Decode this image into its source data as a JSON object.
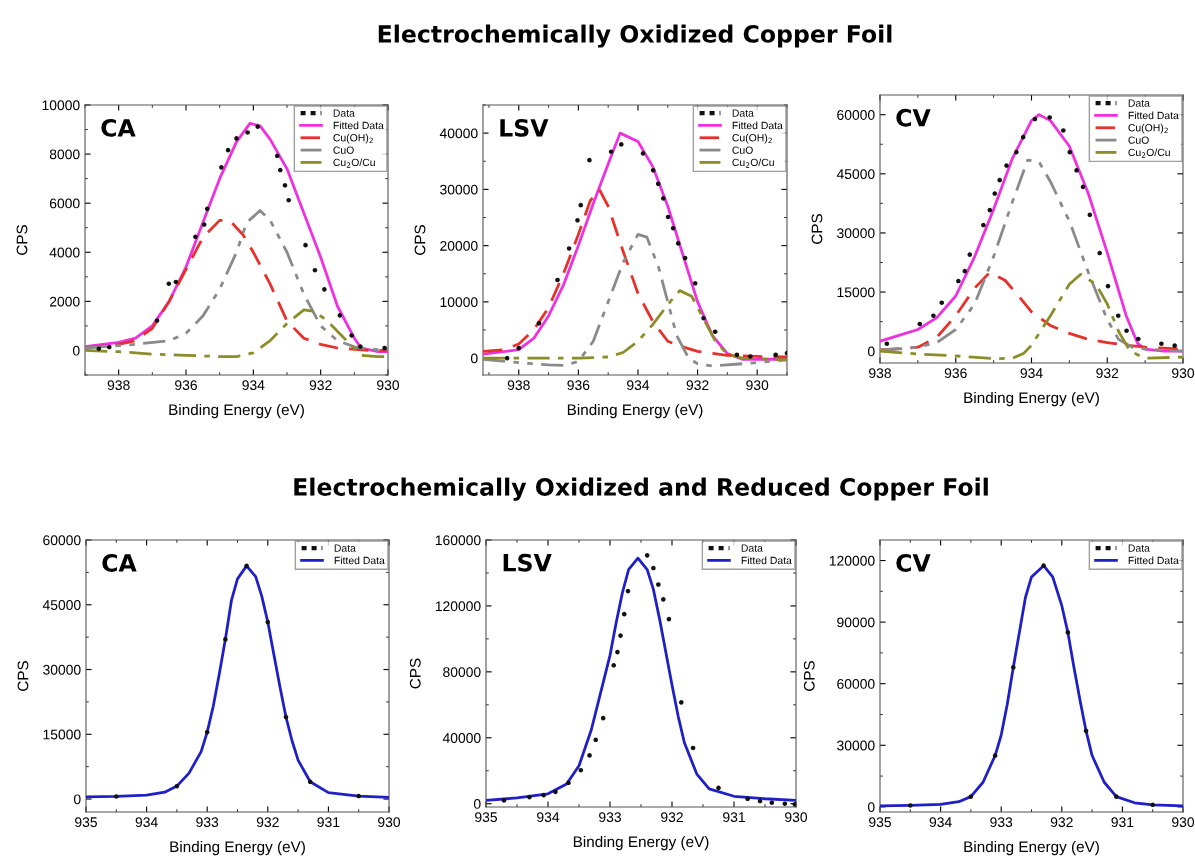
{
  "chart_data": [
    {
      "type": "line",
      "annotations": [
        "CA"
      ],
      "xlabel": "Binding Energy (eV)",
      "ylabel": "CPS",
      "xlim": [
        939,
        930
      ],
      "xticks": [
        938,
        936,
        934,
        932,
        930
      ],
      "ylim": [
        -1000,
        10000
      ],
      "yticks": [
        0,
        2000,
        4000,
        6000,
        8000,
        10000
      ],
      "legend": "top right",
      "grid": false,
      "series": [
        {
          "name": "Data",
          "type": "scatter",
          "marker": "circle",
          "color": "#111111",
          "x": [
            938.59,
            938.28,
            936.86,
            936.51,
            936.3,
            935.72,
            935.46,
            935.37,
            934.95,
            934.75,
            934.5,
            934.17,
            933.87,
            933.29,
            933.2,
            933.06,
            932.95,
            932.45,
            932.17,
            931.89,
            931.43,
            931.08,
            930.82,
            930.1
          ],
          "values": [
            70,
            140,
            1220,
            2720,
            2790,
            4630,
            5130,
            5770,
            7460,
            8160,
            8640,
            8880,
            9120,
            7930,
            7350,
            6730,
            6120,
            4290,
            3270,
            2490,
            1430,
            610,
            160,
            100
          ]
        },
        {
          "name": "Fitted Data",
          "color": "#ee30e0",
          "line_style": "solid",
          "x": [
            939,
            938,
            937.5,
            937,
            936.5,
            936,
            935.5,
            935,
            934.5,
            934.1,
            933.8,
            933.5,
            933,
            932.5,
            932,
            931.5,
            931,
            930.8,
            930.3,
            930
          ],
          "values": [
            150,
            330,
            500,
            1000,
            2000,
            3400,
            5200,
            7000,
            8500,
            9250,
            9150,
            8600,
            7400,
            5600,
            3800,
            1800,
            500,
            100,
            -50,
            -50
          ]
        },
        {
          "name": "Cu(OH)$_{2}$",
          "color": "#e8302a",
          "line_style": "dashed",
          "x": [
            939,
            938,
            937.5,
            937,
            936.5,
            936,
            935.5,
            935,
            934.7,
            934.3,
            934,
            933.5,
            933,
            932.5,
            932,
            931.5,
            930.5,
            930
          ],
          "values": [
            100,
            250,
            400,
            900,
            2000,
            3300,
            4600,
            5300,
            5300,
            4700,
            4000,
            2700,
            1200,
            500,
            250,
            100,
            0,
            0
          ]
        },
        {
          "name": "CuO",
          "color": "#8a8a8a",
          "line_style": "dashdotdot",
          "x": [
            939,
            937.5,
            936.5,
            936,
            935.5,
            935,
            934.5,
            934.2,
            933.8,
            933.5,
            933,
            932.5,
            932,
            931.5,
            931,
            930.5,
            930
          ],
          "values": [
            100,
            250,
            400,
            700,
            1400,
            2500,
            4000,
            5200,
            5700,
            5300,
            4000,
            2300,
            1000,
            400,
            150,
            50,
            0
          ]
        },
        {
          "name": "Cu$_{2}$O/Cu",
          "color": "#8c8c28",
          "line_style": "dashdot",
          "x": [
            939,
            938,
            937,
            936,
            935,
            934.5,
            934,
            933.5,
            933,
            932.5,
            932.2,
            931.8,
            931.3,
            930.8,
            930.3,
            930
          ],
          "values": [
            0,
            -50,
            -150,
            -200,
            -250,
            -250,
            -100,
            400,
            1100,
            1650,
            1600,
            1200,
            500,
            -200,
            -250,
            -250
          ]
        }
      ]
    },
    {
      "type": "line",
      "title": "Electrochemically Oxidized Copper Foil",
      "annotations": [
        "LSV"
      ],
      "xlabel": "Binding Energy (eV)",
      "ylabel": "CPS",
      "xlim": [
        939.2,
        929
      ],
      "xticks": [
        938,
        936,
        934,
        932,
        930
      ],
      "ylim": [
        -3000,
        45000
      ],
      "yticks": [
        0,
        10000,
        20000,
        30000,
        40000
      ],
      "legend": "top right",
      "grid": false,
      "series": [
        {
          "name": "Data",
          "type": "scatter",
          "marker": "circle",
          "color": "#111111",
          "x": [
            938.39,
            938,
            937.32,
            936.7,
            936.31,
            936.03,
            935.92,
            935.63,
            934.9,
            934.56,
            933.83,
            933.49,
            933.32,
            933.15,
            932.99,
            932.82,
            932.65,
            932.42,
            932.08,
            931.8,
            931.41,
            930.68,
            930.23,
            929.38,
            929.0
          ],
          "values": [
            0,
            1800,
            6200,
            13900,
            19500,
            24500,
            27200,
            35200,
            36700,
            38000,
            36400,
            33400,
            31000,
            28400,
            25100,
            23100,
            20400,
            17800,
            13300,
            7100,
            4700,
            600,
            300,
            600,
            900
          ]
        },
        {
          "name": "Fitted Data",
          "color": "#ee30e0",
          "line_style": "solid",
          "x": [
            939.2,
            938,
            937.5,
            937,
            936.5,
            936,
            935.5,
            935,
            934.6,
            934,
            933.5,
            933,
            932.5,
            932,
            931.5,
            931,
            930.5,
            929
          ],
          "values": [
            700,
            1500,
            3500,
            7500,
            13000,
            20000,
            27500,
            34500,
            40000,
            38500,
            34000,
            27000,
            18500,
            10000,
            4000,
            800,
            -200,
            -200
          ]
        },
        {
          "name": "Cu(OH)$_{2}$",
          "color": "#e8302a",
          "line_style": "dashed",
          "x": [
            939.2,
            938.5,
            938,
            937.5,
            937,
            936.5,
            936,
            935.6,
            935.3,
            935,
            934.5,
            934,
            933.5,
            933,
            932.5,
            932,
            931,
            930,
            929
          ],
          "values": [
            1200,
            1500,
            2500,
            5000,
            9000,
            15000,
            22000,
            28000,
            30000,
            27000,
            19000,
            11500,
            6500,
            3000,
            2000,
            1200,
            500,
            300,
            200
          ]
        },
        {
          "name": "CuO",
          "color": "#8a8a8a",
          "line_style": "dashdotdot",
          "x": [
            939.2,
            938,
            937,
            936.5,
            936,
            935.5,
            935,
            934.5,
            934,
            933.7,
            933.3,
            933,
            932.7,
            932.3,
            932,
            931.5,
            930.5,
            929
          ],
          "values": [
            -200,
            -800,
            -1200,
            -1300,
            -600,
            3000,
            10000,
            17000,
            22000,
            21500,
            16000,
            10000,
            4000,
            0,
            -1000,
            -1400,
            -1000,
            -300
          ]
        },
        {
          "name": "Cu$_{2}$O/Cu",
          "color": "#8c8c28",
          "line_style": "dashdot",
          "x": [
            939.2,
            936,
            935,
            934.5,
            934,
            933.5,
            933,
            932.6,
            932.2,
            931.8,
            931.4,
            931,
            930.5,
            929
          ],
          "values": [
            0,
            0,
            200,
            1000,
            3000,
            6000,
            9500,
            12000,
            11000,
            7000,
            3000,
            700,
            0,
            -300
          ]
        }
      ]
    },
    {
      "type": "line",
      "annotations": [
        "CV"
      ],
      "xlabel": "Binding Energy (eV)",
      "ylabel": "CPS",
      "xlim": [
        938,
        930
      ],
      "xticks": [
        938,
        936,
        934,
        932,
        930
      ],
      "ylim": [
        -3000,
        65000
      ],
      "yticks": [
        0,
        15000,
        30000,
        45000,
        60000
      ],
      "legend": "top right",
      "grid": false,
      "series": [
        {
          "name": "Data",
          "type": "scatter",
          "marker": "circle",
          "color": "#111111",
          "x": [
            937.82,
            936.95,
            936.59,
            936.37,
            935.93,
            935.76,
            935.63,
            935.27,
            935.1,
            934.97,
            934.84,
            934.66,
            934.4,
            934.22,
            933.91,
            933.52,
            933.16,
            932.99,
            932.81,
            932.64,
            932.46,
            932.2,
            931.98,
            931.71,
            931.49,
            931.18,
            930.57,
            930.22
          ],
          "values": [
            1900,
            6900,
            9000,
            12300,
            17800,
            20300,
            24500,
            32000,
            35800,
            40000,
            43400,
            47100,
            50500,
            54300,
            58900,
            59300,
            56000,
            50500,
            45900,
            41700,
            34600,
            24900,
            16500,
            9000,
            5200,
            3100,
            1900,
            1400
          ]
        },
        {
          "name": "Fitted Data",
          "color": "#ee30e0",
          "line_style": "solid",
          "x": [
            938,
            937.5,
            937,
            936.5,
            936,
            935.5,
            935,
            934.5,
            934,
            933.8,
            933.5,
            933,
            932.5,
            932,
            931.5,
            931.2,
            931,
            930.5,
            930
          ],
          "values": [
            2500,
            4000,
            5500,
            8500,
            14000,
            24000,
            36000,
            49000,
            58500,
            60000,
            58500,
            52000,
            40000,
            25000,
            9000,
            2000,
            500,
            0,
            0
          ]
        },
        {
          "name": "Cu(OH)$_{2}$",
          "color": "#e8302a",
          "line_style": "dashed",
          "x": [
            938,
            937,
            936.5,
            936,
            935.5,
            935.1,
            934.7,
            934.3,
            934,
            933.5,
            933,
            932.5,
            932,
            931.5,
            931,
            930
          ],
          "values": [
            300,
            1000,
            3500,
            9000,
            16000,
            20000,
            18000,
            13500,
            10000,
            6500,
            4500,
            3000,
            2200,
            1500,
            1000,
            500
          ]
        },
        {
          "name": "CuO",
          "color": "#8a8a8a",
          "line_style": "dashdotdot",
          "x": [
            938,
            937.5,
            937,
            936.5,
            936,
            935.5,
            935,
            934.5,
            934.1,
            933.8,
            933.5,
            933,
            932.5,
            932,
            931.7,
            931.3,
            930.5,
            930
          ],
          "values": [
            300,
            600,
            1000,
            2200,
            5500,
            12000,
            24000,
            38000,
            48500,
            48000,
            43000,
            33000,
            20000,
            8000,
            3000,
            800,
            200,
            0
          ]
        },
        {
          "name": "Cu$_{2}$O/Cu",
          "color": "#8c8c28",
          "line_style": "dashdot",
          "x": [
            938,
            937,
            936,
            935,
            934.5,
            934.2,
            934,
            933.5,
            933,
            932.7,
            932.3,
            932,
            931.7,
            931.4,
            931,
            930
          ],
          "values": [
            0,
            -700,
            -1200,
            -1900,
            -1800,
            -500,
            1500,
            9000,
            17000,
            19500,
            17000,
            12000,
            5000,
            0,
            -1800,
            -1500
          ]
        }
      ]
    },
    {
      "type": "line",
      "annotations": [
        "CA"
      ],
      "xlabel": "Binding Energy (eV)",
      "ylabel": "CPS",
      "xlim": [
        935,
        930
      ],
      "xticks": [
        935,
        934,
        933,
        932,
        931,
        930
      ],
      "ylim": [
        -3000,
        60000
      ],
      "yticks": [
        0,
        15000,
        30000,
        45000,
        60000
      ],
      "legend": "top right",
      "grid": false,
      "series": [
        {
          "name": "Data",
          "type": "scatter",
          "marker": "circle",
          "color": "#111111",
          "x": [
            934.5,
            933.5,
            933,
            932.7,
            932.35,
            932,
            931.7,
            931.3,
            930.5
          ],
          "values": [
            600,
            3000,
            15500,
            37000,
            54000,
            41000,
            19000,
            4000,
            700
          ]
        },
        {
          "name": "Fitted Data",
          "color": "#1f1fc8",
          "line_style": "solid",
          "x": [
            935,
            934.5,
            934,
            933.7,
            933.5,
            933.3,
            933.1,
            933,
            932.9,
            932.8,
            932.7,
            932.6,
            932.5,
            932.35,
            932.2,
            932.1,
            932,
            931.9,
            931.8,
            931.7,
            931.6,
            931.5,
            931.3,
            931,
            930.5,
            930
          ],
          "values": [
            500,
            600,
            900,
            1600,
            3000,
            6000,
            11000,
            15500,
            21500,
            29000,
            37000,
            46000,
            51000,
            54000,
            51500,
            47000,
            41000,
            33500,
            26000,
            19000,
            13500,
            9000,
            4000,
            1500,
            700,
            400
          ]
        }
      ]
    },
    {
      "type": "line",
      "title": "Electrochemically Oxidized and Reduced Copper Foil",
      "annotations": [
        "LSV"
      ],
      "xlabel": "Binding Energy (eV)",
      "ylabel": "CPS",
      "xlim": [
        935,
        930
      ],
      "xticks": [
        935,
        934,
        933,
        932,
        931,
        930
      ],
      "ylim": [
        -2000,
        160000
      ],
      "yticks": [
        0,
        40000,
        80000,
        120000,
        160000
      ],
      "legend": "top right",
      "grid": false,
      "series": [
        {
          "name": "Data",
          "type": "scatter",
          "marker": "circle",
          "color": "#111111",
          "x": [
            934.71,
            934.3,
            934.07,
            933.88,
            933.67,
            933.47,
            933.33,
            933.23,
            933.11,
            932.94,
            932.88,
            932.83,
            932.77,
            932.71,
            932.4,
            932.3,
            932.22,
            932.14,
            932.05,
            931.85,
            931.66,
            931.25,
            930.78,
            930.58,
            930.39,
            930.18,
            930.02
          ],
          "values": [
            2000,
            4000,
            5200,
            7200,
            12700,
            20300,
            29300,
            38800,
            51900,
            84000,
            92000,
            102000,
            115000,
            129000,
            150700,
            143000,
            133000,
            124000,
            112000,
            61500,
            33800,
            9600,
            3000,
            1600,
            600,
            0,
            -400
          ]
        },
        {
          "name": "Fitted Data",
          "color": "#1f1fc8",
          "line_style": "solid",
          "x": [
            935,
            934.5,
            934,
            933.7,
            933.5,
            933.3,
            933.1,
            933,
            932.9,
            932.8,
            932.7,
            932.55,
            932.4,
            932.3,
            932.2,
            932.1,
            932,
            931.9,
            931.8,
            931.6,
            931.4,
            931,
            930.5,
            930
          ],
          "values": [
            2000,
            3500,
            6000,
            12000,
            23000,
            45000,
            75000,
            90000,
            110000,
            128000,
            142000,
            149000,
            142000,
            130000,
            112000,
            92000,
            72000,
            53000,
            37000,
            18000,
            9000,
            4500,
            3000,
            2000
          ]
        }
      ]
    },
    {
      "type": "line",
      "annotations": [
        "CV"
      ],
      "xlabel": "Binding Energy (eV)",
      "ylabel": "CPS",
      "xlim": [
        935,
        930
      ],
      "xticks": [
        935,
        934,
        933,
        932,
        931,
        930
      ],
      "ylim": [
        -2500,
        130000
      ],
      "yticks": [
        0,
        30000,
        60000,
        90000,
        120000
      ],
      "legend": "top right",
      "grid": false,
      "series": [
        {
          "name": "Data",
          "type": "scatter",
          "marker": "circle",
          "color": "#111111",
          "x": [
            934.5,
            933.5,
            933.1,
            932.8,
            932.3,
            931.9,
            931.6,
            931.1,
            930.5
          ],
          "values": [
            700,
            5000,
            25000,
            68000,
            117500,
            85000,
            37000,
            5000,
            1000
          ]
        },
        {
          "name": "Fitted Data",
          "color": "#1f1fc8",
          "line_style": "solid",
          "x": [
            935,
            934.5,
            934,
            933.7,
            933.5,
            933.3,
            933.1,
            933,
            932.9,
            932.8,
            932.7,
            932.6,
            932.5,
            932.3,
            932.15,
            932,
            931.9,
            931.8,
            931.7,
            931.6,
            931.5,
            931.3,
            931.1,
            930.8,
            930.5,
            930
          ],
          "values": [
            500,
            700,
            1200,
            2500,
            5000,
            12000,
            25000,
            35000,
            50000,
            68000,
            85000,
            102000,
            112000,
            117500,
            112000,
            98000,
            85000,
            68000,
            52000,
            37000,
            25000,
            12000,
            5000,
            2000,
            1000,
            500
          ]
        }
      ]
    }
  ]
}
